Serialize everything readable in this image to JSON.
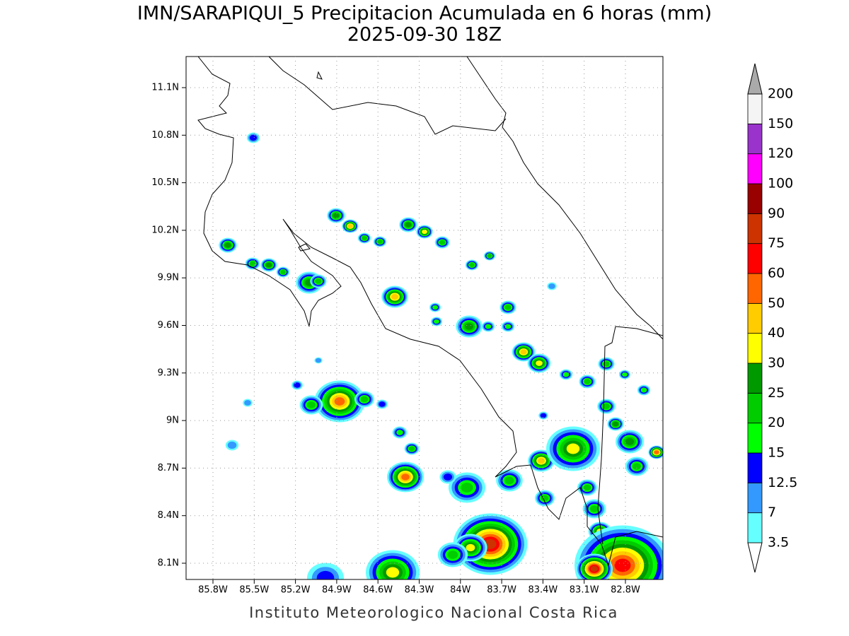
{
  "header": {
    "title": "IMN/SARAPIQUI_5 Precipitacion Acumulada en 6 horas (mm)",
    "subtitle": "2025-09-30 18Z"
  },
  "map": {
    "lon_labels": [
      "85.8W",
      "85.5W",
      "85.2W",
      "84.9W",
      "84.6W",
      "84.3W",
      "84W",
      "83.7W",
      "83.4W",
      "83.1W",
      "82.8W"
    ],
    "lat_labels": [
      "11.1N",
      "10.8N",
      "10.5N",
      "10.2N",
      "9.9N",
      "9.6N",
      "9.3N",
      "9N",
      "8.7N",
      "8.4N",
      "8.1N"
    ]
  },
  "colorbar": {
    "levels": [
      3.5,
      7,
      12.5,
      15,
      20,
      25,
      30,
      40,
      50,
      60,
      75,
      90,
      100,
      120,
      150,
      200
    ],
    "colors": [
      "#ffffff",
      "#66ffff",
      "#3399ff",
      "#0000ff",
      "#00ff00",
      "#00cc00",
      "#009900",
      "#ffff00",
      "#ffcc00",
      "#ff6600",
      "#ff0000",
      "#cc3300",
      "#990000",
      "#ff00ff",
      "#9933cc",
      "#f4f4f4",
      "#aaaaaa"
    ]
  },
  "footer": "Instituto Meteorologico Nacional Costa Rica"
}
